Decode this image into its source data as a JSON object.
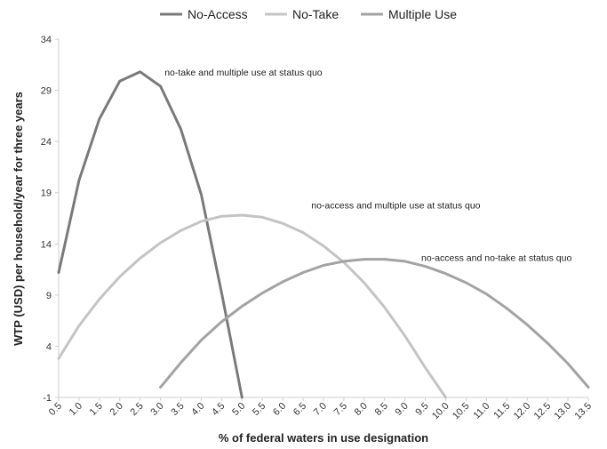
{
  "chart_data": {
    "type": "line",
    "xlabel": "% of federal waters in use designation",
    "ylabel": "WTP (USD) per household/year for three years",
    "ylim": [
      -1,
      34
    ],
    "xlim": [
      0.5,
      13.5
    ],
    "grid": false,
    "legend_position": "top",
    "x_ticks": [
      "0.5",
      "1.0",
      "1.5",
      "2.0",
      "2.5",
      "3.0",
      "3.5",
      "4.0",
      "4.5",
      "5.0",
      "5.5",
      "6.0",
      "6.5",
      "7.0",
      "7.5",
      "8.0",
      "8.5",
      "9.0",
      "9.5",
      "10.0",
      "10.5",
      "11.0",
      "11.5",
      "12.0",
      "12.5",
      "13.0",
      "13.5"
    ],
    "y_ticks": [
      "-1",
      "4",
      "9",
      "14",
      "19",
      "24",
      "29",
      "34"
    ],
    "series": [
      {
        "name": "No-Access",
        "color": "#7a7a7a",
        "x": [
          0.5,
          1.0,
          1.5,
          2.0,
          2.5,
          3.0,
          3.5,
          4.0,
          4.5,
          5.0
        ],
        "y": [
          11.2,
          20.2,
          26.2,
          29.9,
          30.8,
          29.4,
          25.2,
          18.8,
          9.2,
          -1.0
        ]
      },
      {
        "name": "No-Take",
        "color": "#c4c4c4",
        "x": [
          0.5,
          1.0,
          1.5,
          2.0,
          2.5,
          3.0,
          3.5,
          4.0,
          4.5,
          5.0,
          5.5,
          6.0,
          6.5,
          7.0,
          7.5,
          8.0,
          8.5,
          9.0,
          9.5,
          10.0
        ],
        "y": [
          2.8,
          6.0,
          8.6,
          10.8,
          12.6,
          14.1,
          15.3,
          16.2,
          16.7,
          16.8,
          16.6,
          16.0,
          15.1,
          13.8,
          12.2,
          10.2,
          7.8,
          5.0,
          1.9,
          -1.0
        ]
      },
      {
        "name": "Multiple Use",
        "color": "#a3a3a3",
        "x": [
          3.0,
          3.5,
          4.0,
          4.5,
          5.0,
          5.5,
          6.0,
          6.5,
          7.0,
          7.5,
          8.0,
          8.5,
          9.0,
          9.5,
          10.0,
          10.5,
          11.0,
          11.5,
          12.0,
          12.5,
          13.0,
          13.5
        ],
        "y": [
          0.0,
          2.4,
          4.6,
          6.4,
          7.9,
          9.2,
          10.3,
          11.2,
          11.9,
          12.3,
          12.5,
          12.5,
          12.3,
          11.8,
          11.1,
          10.2,
          9.1,
          7.7,
          6.1,
          4.3,
          2.3,
          0.0
        ]
      }
    ],
    "annotations": [
      {
        "text": "no-take and multiple use at status quo",
        "x": 3.1,
        "y": 30.8
      },
      {
        "text": "no-access and multiple use at status quo",
        "x": 6.7,
        "y": 17.8
      },
      {
        "text": "no-access and no-take at status quo",
        "x": 9.4,
        "y": 12.7
      }
    ]
  }
}
